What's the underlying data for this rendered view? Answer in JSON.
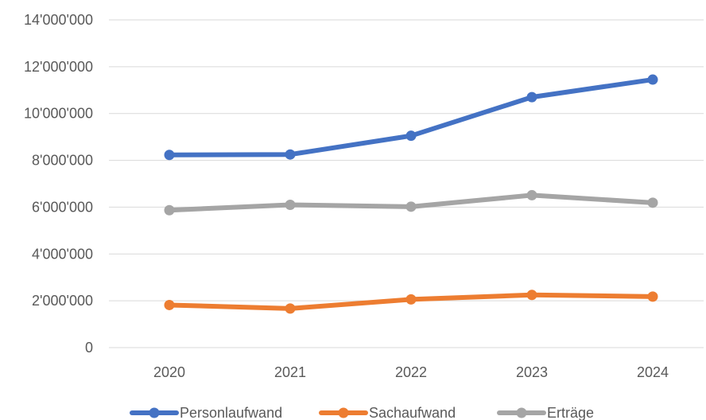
{
  "chart_data": {
    "type": "line",
    "title": "",
    "xlabel": "",
    "ylabel": "",
    "categories": [
      "2020",
      "2021",
      "2022",
      "2023",
      "2024"
    ],
    "ylim": [
      0,
      14000000
    ],
    "yticks": [
      0,
      2000000,
      4000000,
      6000000,
      8000000,
      10000000,
      12000000,
      14000000
    ],
    "ytick_labels": [
      "0",
      "2'000'000",
      "4'000'000",
      "6'000'000",
      "8'000'000",
      "10'000'000",
      "12'000'000",
      "14'000'000"
    ],
    "grid": true,
    "legend_position": "bottom",
    "series": [
      {
        "name": "Personlaufwand",
        "color": "#4472C4",
        "values": [
          8230000,
          8250000,
          9050000,
          10700000,
          11450000
        ]
      },
      {
        "name": "Sachaufwand",
        "color": "#ED7D31",
        "values": [
          1820000,
          1670000,
          2060000,
          2250000,
          2180000
        ]
      },
      {
        "name": "Erträge",
        "color": "#A5A5A5",
        "values": [
          5870000,
          6100000,
          6020000,
          6510000,
          6190000
        ]
      }
    ]
  }
}
